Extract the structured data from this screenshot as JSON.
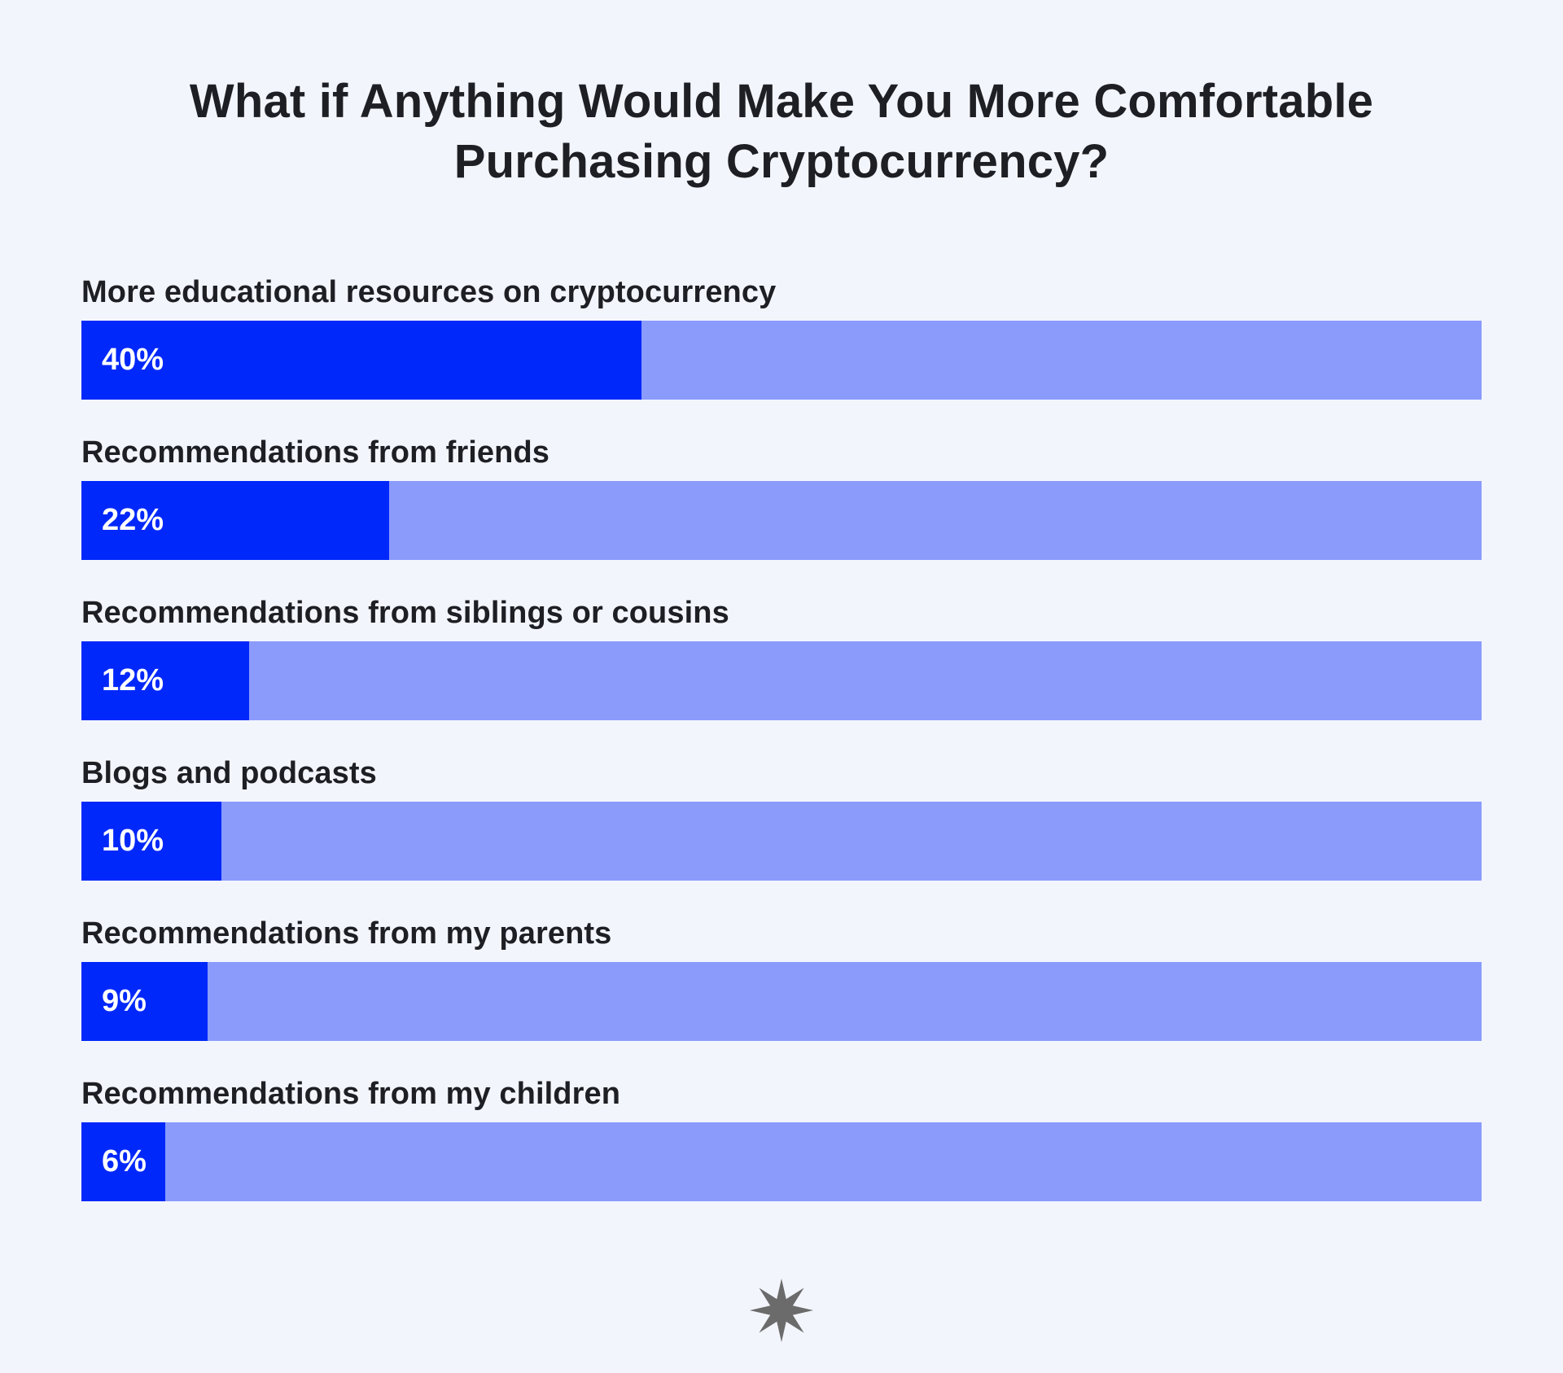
{
  "chart_data": {
    "type": "bar",
    "orientation": "horizontal",
    "title_lines": [
      "What if Anything Would Make You More Comfortable",
      "Purchasing Cryptocurrency?"
    ],
    "categories": [
      "More educational resources on cryptocurrency",
      "Recommendations from friends",
      "Recommendations from siblings or cousins",
      "Blogs and podcasts",
      "Recommendations from my parents",
      "Recommendations from my children"
    ],
    "values": [
      40,
      22,
      12,
      10,
      9,
      6
    ],
    "value_labels": [
      "40%",
      "22%",
      "12%",
      "10%",
      "9%",
      "6%"
    ],
    "unit": "%",
    "xlim": [
      0,
      100
    ],
    "grid": false,
    "legend": "none",
    "colors": {
      "background": "#f3f5fd",
      "bar_fill": "#0028fa",
      "bar_track": "#8a9bfc",
      "text": "#1d1f24",
      "value_text": "#ffffff",
      "logo": "#6b6b6b"
    }
  },
  "logo": {
    "icon": "starburst-logo-icon"
  }
}
